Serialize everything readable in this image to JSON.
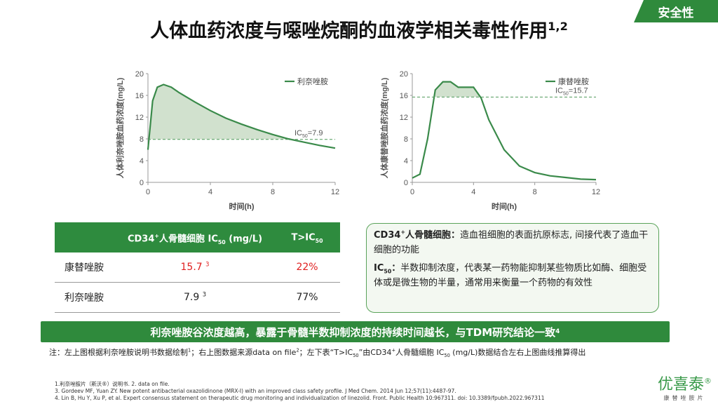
{
  "tag": "安全性",
  "title": {
    "text": "人体血药浓度与噁唑烷酮的血液学相关毒性作用",
    "sup": "1,2"
  },
  "chart_data": [
    {
      "type": "line",
      "xlabel": "时间(h)",
      "ylabel": "人体利奈唑胺血药浓度(mg/L)",
      "x": [
        0,
        0.1,
        0.3,
        0.6,
        1,
        1.5,
        2,
        3,
        4,
        5,
        6,
        7,
        8,
        9,
        10,
        11,
        12
      ],
      "series": [
        {
          "name": "利奈唑胺",
          "color": "#3a8a4a",
          "values": [
            6,
            9,
            15,
            17.5,
            18,
            17.5,
            16.5,
            14.8,
            13.2,
            11.8,
            10.7,
            9.7,
            8.8,
            8,
            7.4,
            6.8,
            6.3
          ]
        }
      ],
      "xlim": [
        0,
        12
      ],
      "xticks": [
        0,
        4,
        8,
        12
      ],
      "ylim": [
        0,
        20
      ],
      "yticks": [
        0,
        4,
        8,
        12,
        16,
        20
      ],
      "grid": false,
      "threshold": 7.9,
      "annotation": {
        "text": "IC",
        "sub": "50",
        "tail": "=7.9"
      },
      "legend": "top-right"
    },
    {
      "type": "line",
      "xlabel": "时间(h)",
      "ylabel": "人体康替唑胺血药浓度(mg/L)",
      "x": [
        0,
        0.5,
        1,
        1.5,
        2,
        2.5,
        3,
        3.5,
        4,
        4.5,
        5,
        6,
        7,
        8,
        9,
        10,
        11,
        12
      ],
      "series": [
        {
          "name": "康替唑胺",
          "color": "#3a8a4a",
          "values": [
            0.8,
            1.5,
            8,
            17,
            18.5,
            18.5,
            17.5,
            17.5,
            17.5,
            15.5,
            11.5,
            6,
            3,
            1.8,
            1.2,
            0.9,
            0.6,
            0.5
          ]
        }
      ],
      "xlim": [
        0,
        12
      ],
      "xticks": [
        0,
        4,
        8,
        12
      ],
      "ylim": [
        0,
        20
      ],
      "yticks": [
        0,
        4,
        8,
        12,
        16,
        20
      ],
      "grid": false,
      "threshold": 15.7,
      "annotation": {
        "text": "IC",
        "sub": "50",
        "tail": "=15.7"
      },
      "legend": "top-right"
    }
  ],
  "table": {
    "header": [
      {
        "a": "CD34",
        "sup": "+",
        "b": "人骨髓细胞 IC",
        "sub": "50",
        "c": " (mg/L)"
      },
      {
        "a": "T>IC",
        "sub": "50"
      }
    ],
    "rows": [
      {
        "name": "康替唑胺",
        "value": "15.7",
        "ref": "3",
        "pct": "22%"
      },
      {
        "name": "利奈唑胺",
        "value": "7.9",
        "ref": "3",
        "pct": "77%"
      }
    ]
  },
  "info": [
    {
      "a": "CD34",
      "sup": "+",
      "b": "人骨髓细胞：",
      "text": "造血祖细胞的表面抗原标志, 间接代表了造血干细胞的功能"
    },
    {
      "a": "IC",
      "sub": "50",
      "b": "：",
      "text": "半数抑制浓度，代表某一药物能抑制某些物质比如酶、细胞受体或是微生物的半量，通常用来衡量一个药物的有效性"
    }
  ],
  "banner": {
    "text": "利奈唑胺谷浓度越高，暴露于骨髓半数抑制浓度的持续时间越长，与TDM研究结论一致",
    "sup": "4"
  },
  "note": [
    "注：左上图根据利奈唑胺说明书数据绘制",
    "1",
    "；右上图数据来源data on file",
    "2",
    "；左下表“T>IC",
    "50",
    "”由CD34",
    "+",
    "人骨髓细胞 IC",
    "50",
    " (mg/L)数据结合左右上图曲线推算得出"
  ],
  "refs": [
    "1.利奈唑胺片（斯沃®）说明书. 2. data on file.",
    "3. Gordeev MF, Yuan ZY. New potent antibacterial oxazolidinone (MRX-I) with an improved class safety profile. J Med Chem. 2014 Jun 12;57(11):4487-97.",
    "4. Lin B, Hu Y, Xu P, et al.  Expert consensus statement on therapeutic drug monitoring and individualization of linezolid. Front. Public Health 10:967311. doi: 10.3389/fpubh.2022.967311"
  ],
  "logo": {
    "name": "优喜泰",
    "mark": "®",
    "sub": "康替唑胺片"
  }
}
